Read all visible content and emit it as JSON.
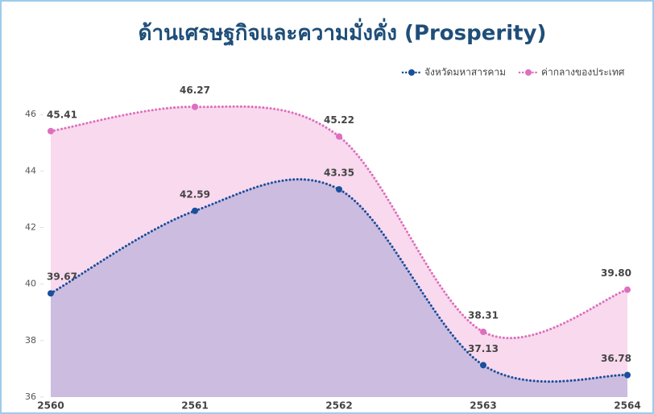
{
  "chart_data": {
    "type": "line",
    "title": "ด้านเศรษฐกิจและความมั่งคั่ง (Prosperity)",
    "categories": [
      "2560",
      "2561",
      "2562",
      "2563",
      "2564"
    ],
    "series": [
      {
        "name": "จังหวัดมหาสารคาม",
        "color": "#1a4f9c",
        "area": "#c4b6dc",
        "values": [
          39.67,
          42.59,
          43.35,
          37.13,
          36.78
        ],
        "value_labels": [
          "39.67",
          "42.59",
          "43.35",
          "37.13",
          "36.78"
        ]
      },
      {
        "name": "ค่ากลางของประเทศ",
        "color": "#de6ebf",
        "area": "#f7d2ea",
        "values": [
          45.41,
          46.27,
          45.22,
          38.31,
          39.8
        ],
        "value_labels": [
          "45.41",
          "46.27",
          "45.22",
          "38.31",
          "39.80"
        ]
      }
    ],
    "ylim": [
      36,
      47.2
    ],
    "yticks": [
      36,
      38,
      40,
      42,
      44,
      46
    ],
    "legend": "top-right"
  }
}
